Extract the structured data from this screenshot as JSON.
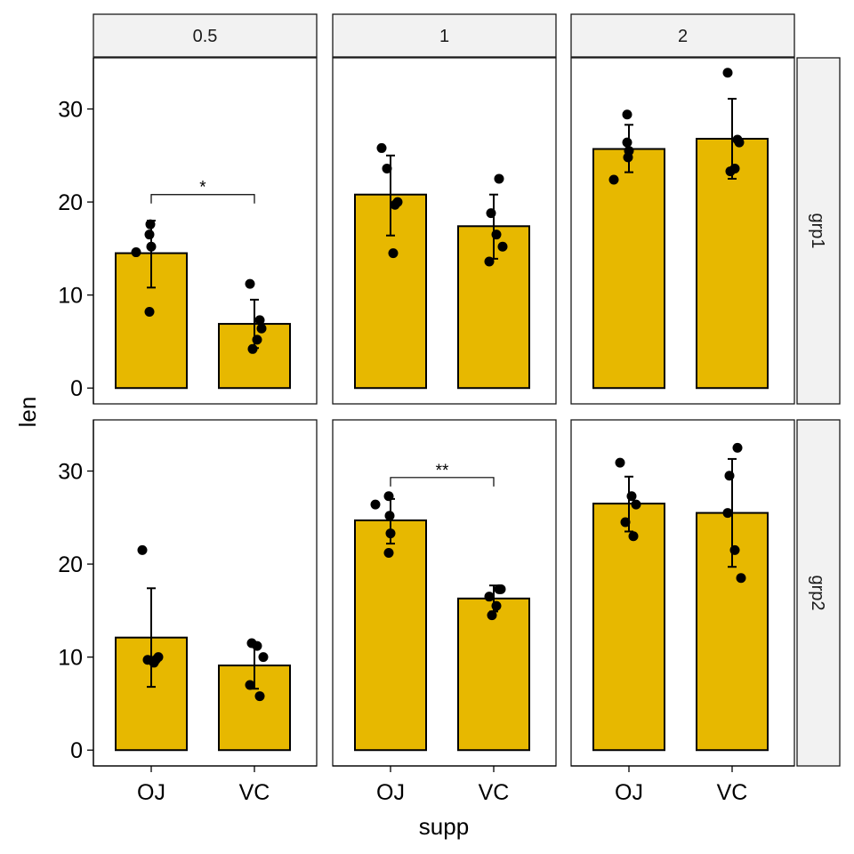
{
  "chart_data": {
    "type": "bar",
    "xlabel": "supp",
    "ylabel": "len",
    "categories": [
      "OJ",
      "VC"
    ],
    "facet_cols": [
      "0.5",
      "1",
      "2"
    ],
    "facet_rows": [
      "grp1",
      "grp2"
    ],
    "ylim": [
      -1.7,
      35.5
    ],
    "yticks": [
      0,
      10,
      20,
      30
    ],
    "colors": {
      "bar_fill": "#E7B800",
      "bar_stroke": "#000000",
      "strip_fill": "#F2F2F2",
      "point": "#000000"
    },
    "panels": [
      {
        "row": "grp1",
        "col": "0.5",
        "bars": [
          {
            "category": "OJ",
            "mean": 14.5,
            "err_low": 10.8,
            "err_high": 18.0,
            "points": [
              14.6,
              16.5,
              17.6,
              15.2,
              8.2
            ]
          },
          {
            "category": "VC",
            "mean": 6.9,
            "err_low": 4.3,
            "err_high": 9.5,
            "points": [
              11.2,
              7.3,
              6.4,
              5.2,
              4.2
            ]
          }
        ],
        "significance": {
          "label": "*",
          "y": 20.8
        }
      },
      {
        "row": "grp1",
        "col": "1",
        "bars": [
          {
            "category": "OJ",
            "mean": 20.8,
            "err_low": 16.4,
            "err_high": 25.0,
            "points": [
              25.8,
              19.7,
              14.5,
              20.0,
              23.6
            ]
          },
          {
            "category": "VC",
            "mean": 17.4,
            "err_low": 13.9,
            "err_high": 20.8,
            "points": [
              18.8,
              16.5,
              15.2,
              13.6,
              22.5
            ]
          }
        ],
        "significance": null
      },
      {
        "row": "grp1",
        "col": "2",
        "bars": [
          {
            "category": "OJ",
            "mean": 25.7,
            "err_low": 23.2,
            "err_high": 28.3,
            "points": [
              22.4,
              26.4,
              24.8,
              25.5,
              29.4
            ]
          },
          {
            "category": "VC",
            "mean": 26.8,
            "err_low": 22.5,
            "err_high": 31.1,
            "points": [
              33.9,
              26.7,
              26.4,
              23.6,
              23.3
            ]
          }
        ],
        "significance": null
      },
      {
        "row": "grp2",
        "col": "0.5",
        "bars": [
          {
            "category": "OJ",
            "mean": 12.1,
            "err_low": 6.8,
            "err_high": 17.4,
            "points": [
              21.5,
              9.7,
              9.4,
              10.0,
              9.7
            ]
          },
          {
            "category": "VC",
            "mean": 9.1,
            "err_low": 6.6,
            "err_high": 11.5,
            "points": [
              11.5,
              11.2,
              10.0,
              7.0,
              5.8
            ]
          }
        ],
        "significance": null
      },
      {
        "row": "grp2",
        "col": "1",
        "bars": [
          {
            "category": "OJ",
            "mean": 24.7,
            "err_low": 22.2,
            "err_high": 27.0,
            "points": [
              26.4,
              27.3,
              25.2,
              23.3,
              21.2
            ]
          },
          {
            "category": "VC",
            "mean": 16.3,
            "err_low": 14.9,
            "err_high": 17.7,
            "points": [
              16.5,
              17.3,
              17.3,
              15.5,
              14.5
            ]
          }
        ],
        "significance": {
          "label": "**",
          "y": 29.3
        }
      },
      {
        "row": "grp2",
        "col": "2",
        "bars": [
          {
            "category": "OJ",
            "mean": 26.5,
            "err_low": 23.5,
            "err_high": 29.4,
            "points": [
              30.9,
              23.0,
              27.3,
              26.4,
              24.5
            ]
          },
          {
            "category": "VC",
            "mean": 25.5,
            "err_low": 19.7,
            "err_high": 31.3,
            "points": [
              29.5,
              21.5,
              18.5,
              25.5,
              32.5
            ]
          }
        ],
        "significance": null
      }
    ]
  }
}
